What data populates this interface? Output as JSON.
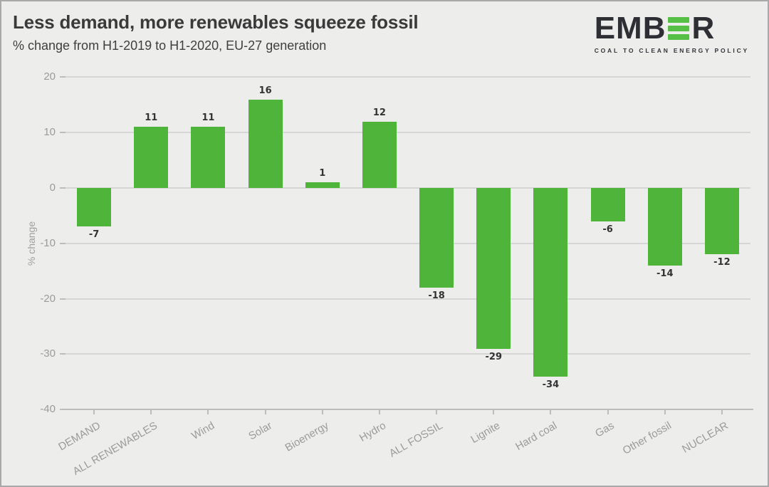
{
  "header": {
    "title": "Less demand, more renewables squeeze fossil",
    "subtitle": "% change from H1-2019 to H1-2020, EU-27 generation"
  },
  "logo": {
    "word_left": "EMB",
    "word_right": "R",
    "tagline": "COAL TO CLEAN ENERGY POLICY",
    "bar_color": "#56bf45",
    "text_color": "#2e2f35"
  },
  "chart_data": {
    "type": "bar",
    "title": "Less demand, more renewables squeeze fossil",
    "subtitle": "% change from H1-2019 to H1-2020, EU-27 generation",
    "categories": [
      "DEMAND",
      "ALL RENEWABLES",
      "Wind",
      "Solar",
      "Bioenergy",
      "Hydro",
      "ALL FOSSIL",
      "Lignite",
      "Hard coal",
      "Gas",
      "Other fossil",
      "NUCLEAR"
    ],
    "values": [
      -7,
      11,
      11,
      16,
      1,
      12,
      -18,
      -29,
      -34,
      -6,
      -14,
      -12
    ],
    "xlabel": "",
    "ylabel": "% change",
    "ylim": [
      -40,
      20
    ],
    "yticks": [
      20,
      10,
      0,
      -10,
      -20,
      -30,
      -40
    ],
    "grid": true,
    "legend": "none",
    "bar_color": "#4eb53a",
    "gridline_color": "#d6d6d6",
    "axis_color": "#bdbdbd",
    "tick_label_color": "#9b9b9b",
    "value_label_color": "#333333",
    "background_color": "#ededec"
  }
}
